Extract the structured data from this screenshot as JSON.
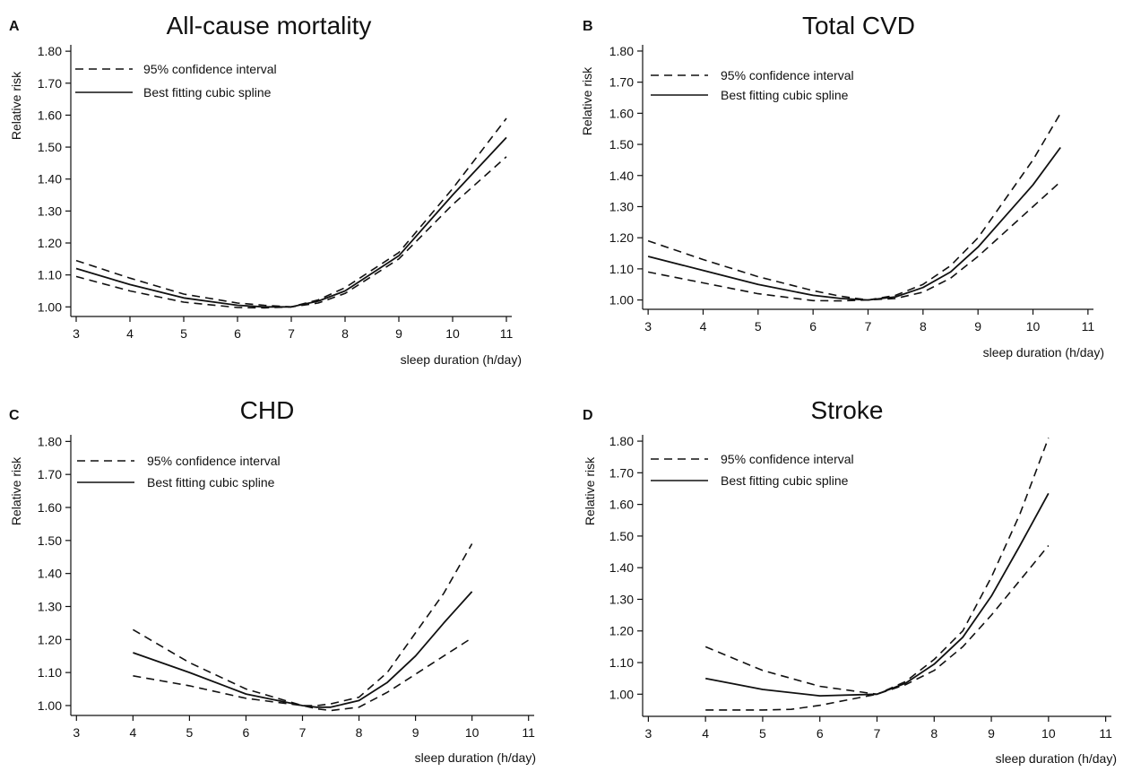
{
  "chart_data": [
    {
      "type": "line",
      "panel": "A",
      "title": "All-cause mortality",
      "xlabel": "sleep duration (h/day)",
      "ylabel": "Relative risk",
      "xlim": [
        2.9,
        11.1
      ],
      "ylim": [
        0.97,
        1.82
      ],
      "xticks": [
        3,
        4,
        5,
        6,
        7,
        8,
        9,
        10,
        11
      ],
      "yticks": [
        1.0,
        1.1,
        1.2,
        1.3,
        1.4,
        1.5,
        1.6,
        1.7,
        1.8
      ],
      "ytick_labels": [
        "1.00",
        "1.10",
        "1.20",
        "1.30",
        "1.40",
        "1.50",
        "1.60",
        "1.70",
        "1.80"
      ],
      "legend": [
        "95% confidence interval",
        "Best fitting cubic spline"
      ],
      "series": [
        {
          "style": "dashed",
          "x": [
            3,
            4,
            5,
            6,
            6.5,
            7,
            7.5,
            8,
            9,
            10,
            11
          ],
          "y": [
            1.145,
            1.09,
            1.04,
            1.012,
            1.005,
            1.0,
            1.022,
            1.06,
            1.17,
            1.37,
            1.59
          ]
        },
        {
          "style": "solid",
          "x": [
            3,
            4,
            5,
            6,
            6.5,
            7,
            7.5,
            8,
            9,
            10,
            11
          ],
          "y": [
            1.12,
            1.07,
            1.028,
            1.005,
            1.0,
            1.0,
            1.018,
            1.05,
            1.16,
            1.35,
            1.53
          ]
        },
        {
          "style": "dashed",
          "x": [
            3,
            4,
            5,
            6,
            6.5,
            7,
            7.5,
            8,
            9,
            10,
            11
          ],
          "y": [
            1.095,
            1.05,
            1.015,
            0.998,
            0.997,
            1.0,
            1.012,
            1.042,
            1.15,
            1.32,
            1.47
          ]
        }
      ]
    },
    {
      "type": "line",
      "panel": "B",
      "title": "Total CVD",
      "xlabel": "sleep duration (h/day)",
      "ylabel": "Relative risk",
      "xlim": [
        2.9,
        11.1
      ],
      "ylim": [
        0.97,
        1.82
      ],
      "xticks": [
        3,
        4,
        5,
        6,
        7,
        8,
        9,
        10,
        11
      ],
      "yticks": [
        1.0,
        1.1,
        1.2,
        1.3,
        1.4,
        1.5,
        1.6,
        1.7,
        1.8
      ],
      "ytick_labels": [
        "1.00",
        "1.10",
        "1.20",
        "1.30",
        "1.40",
        "1.50",
        "1.60",
        "1.70",
        "1.80"
      ],
      "legend": [
        "95% confidence interval",
        "Best fitting cubic spline"
      ],
      "series": [
        {
          "style": "dashed",
          "x": [
            3,
            4,
            5,
            6,
            6.5,
            7,
            7.5,
            8,
            8.5,
            9,
            10,
            10.5
          ],
          "y": [
            1.19,
            1.13,
            1.075,
            1.03,
            1.012,
            1.0,
            1.015,
            1.05,
            1.11,
            1.2,
            1.45,
            1.6
          ]
        },
        {
          "style": "solid",
          "x": [
            3,
            4,
            5,
            6,
            6.5,
            7,
            7.5,
            8,
            8.5,
            9,
            10,
            10.5
          ],
          "y": [
            1.14,
            1.095,
            1.05,
            1.015,
            1.005,
            1.0,
            1.01,
            1.04,
            1.09,
            1.17,
            1.37,
            1.49
          ]
        },
        {
          "style": "dashed",
          "x": [
            3,
            4,
            5,
            6,
            6.5,
            7,
            7.5,
            8,
            8.5,
            9,
            10,
            10.5
          ],
          "y": [
            1.09,
            1.055,
            1.02,
            0.998,
            0.997,
            1.0,
            1.005,
            1.025,
            1.07,
            1.14,
            1.3,
            1.38
          ]
        }
      ]
    },
    {
      "type": "line",
      "panel": "C",
      "title": "CHD",
      "xlabel": "sleep duration (h/day)",
      "ylabel": "Relative risk",
      "xlim": [
        2.9,
        11.1
      ],
      "ylim": [
        0.97,
        1.82
      ],
      "xticks": [
        3,
        4,
        5,
        6,
        7,
        8,
        9,
        10,
        11
      ],
      "yticks": [
        1.0,
        1.1,
        1.2,
        1.3,
        1.4,
        1.5,
        1.6,
        1.7,
        1.8
      ],
      "ytick_labels": [
        "1.00",
        "1.10",
        "1.20",
        "1.30",
        "1.40",
        "1.50",
        "1.60",
        "1.70",
        "1.80"
      ],
      "legend": [
        "95% confidence interval",
        "Best fitting cubic spline"
      ],
      "series": [
        {
          "style": "dashed",
          "x": [
            4,
            5,
            6,
            7,
            7.25,
            7.5,
            8,
            8.5,
            9,
            9.5,
            10
          ],
          "y": [
            1.23,
            1.13,
            1.05,
            1.0,
            1.0,
            1.005,
            1.025,
            1.1,
            1.22,
            1.34,
            1.49
          ]
        },
        {
          "style": "solid",
          "x": [
            4,
            5,
            6,
            7,
            7.25,
            7.5,
            8,
            8.5,
            9,
            9.5,
            10
          ],
          "y": [
            1.16,
            1.1,
            1.035,
            1.0,
            0.995,
            0.995,
            1.015,
            1.07,
            1.15,
            1.25,
            1.345
          ]
        },
        {
          "style": "dashed",
          "x": [
            4,
            5,
            6,
            7,
            7.25,
            7.5,
            8,
            8.5,
            9,
            9.5,
            10
          ],
          "y": [
            1.09,
            1.06,
            1.022,
            1.0,
            0.99,
            0.985,
            0.995,
            1.04,
            1.095,
            1.15,
            1.205
          ]
        }
      ]
    },
    {
      "type": "line",
      "panel": "D",
      "title": "Stroke",
      "xlabel": "sleep duration (h/day)",
      "ylabel": "Relative risk",
      "xlim": [
        2.9,
        11.1
      ],
      "ylim": [
        0.93,
        1.82
      ],
      "xticks": [
        3,
        4,
        5,
        6,
        7,
        8,
        9,
        10,
        11
      ],
      "yticks": [
        1.0,
        1.1,
        1.2,
        1.3,
        1.4,
        1.5,
        1.6,
        1.7,
        1.8
      ],
      "ytick_labels": [
        "1.00",
        "1.10",
        "1.20",
        "1.30",
        "1.40",
        "1.50",
        "1.60",
        "1.70",
        "1.80"
      ],
      "legend": [
        "95% confidence interval",
        "Best fitting cubic spline"
      ],
      "series": [
        {
          "style": "dashed",
          "x": [
            4,
            5,
            6,
            7,
            7.5,
            8,
            8.5,
            9,
            9.5,
            10
          ],
          "y": [
            1.15,
            1.075,
            1.025,
            1.0,
            1.04,
            1.11,
            1.2,
            1.37,
            1.57,
            1.81
          ]
        },
        {
          "style": "solid",
          "x": [
            4,
            5,
            6,
            7,
            7.5,
            8,
            8.5,
            9,
            9.5,
            10
          ],
          "y": [
            1.05,
            1.015,
            0.995,
            1.0,
            1.035,
            1.095,
            1.18,
            1.31,
            1.47,
            1.635
          ]
        },
        {
          "style": "dashed",
          "x": [
            4,
            5,
            5.5,
            6,
            7,
            7.5,
            8,
            8.5,
            9,
            9.5,
            10
          ],
          "y": [
            0.95,
            0.95,
            0.952,
            0.965,
            1.0,
            1.03,
            1.075,
            1.15,
            1.25,
            1.36,
            1.47
          ]
        }
      ]
    }
  ]
}
